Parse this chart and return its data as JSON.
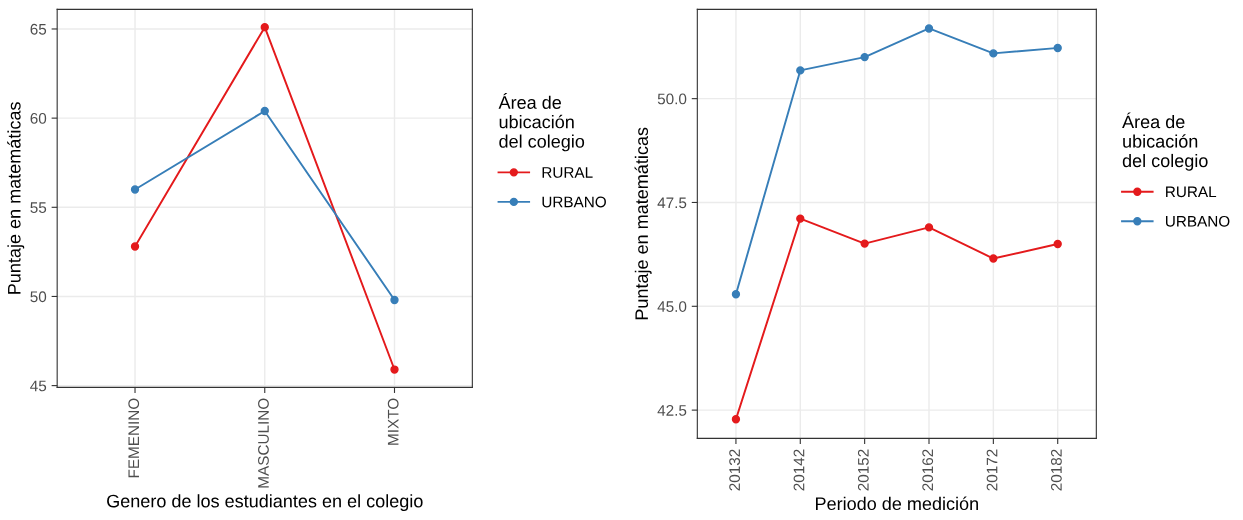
{
  "chart_data": [
    {
      "type": "line",
      "xlabel": "Genero de los estudiantes en el colegio",
      "ylabel": "Puntaje en matemáticas",
      "legend_title": "Área de\nubicación\ndel colegio",
      "categories": [
        "FEMENINO",
        "MASCULINO",
        "MIXTO"
      ],
      "series": [
        {
          "name": "RURAL",
          "color": "#e41a1c",
          "values": [
            52.8,
            65.1,
            45.9
          ]
        },
        {
          "name": "URBANO",
          "color": "#377eb8",
          "values": [
            56.0,
            60.4,
            49.8
          ]
        }
      ],
      "ylim": [
        44.9,
        66.1
      ],
      "yticks": [
        45,
        50,
        55,
        60,
        65
      ],
      "grid": true,
      "legend": "right",
      "marker": "circle",
      "line_style": "solid"
    },
    {
      "type": "line",
      "xlabel": "Periodo de medición",
      "ylabel": "Puntaje en matemáticas",
      "legend_title": "Área de\nubicación\ndel colegio",
      "categories": [
        "20132",
        "20142",
        "20152",
        "20162",
        "20172",
        "20182"
      ],
      "series": [
        {
          "name": "RURAL",
          "color": "#e41a1c",
          "values": [
            42.28,
            47.11,
            46.51,
            46.9,
            46.15,
            46.5
          ]
        },
        {
          "name": "URBANO",
          "color": "#377eb8",
          "values": [
            45.29,
            50.68,
            51.0,
            51.69,
            51.09,
            51.22
          ]
        }
      ],
      "ylim": [
        41.82,
        52.15
      ],
      "yticks": [
        {
          "value": 42.5,
          "label": "42.5"
        },
        {
          "value": 45,
          "label": "45.0"
        },
        {
          "value": 47.5,
          "label": "47.5"
        },
        {
          "value": 50,
          "label": "50.0"
        }
      ],
      "grid": true,
      "legend": "right",
      "marker": "circle",
      "line_style": "solid"
    }
  ]
}
